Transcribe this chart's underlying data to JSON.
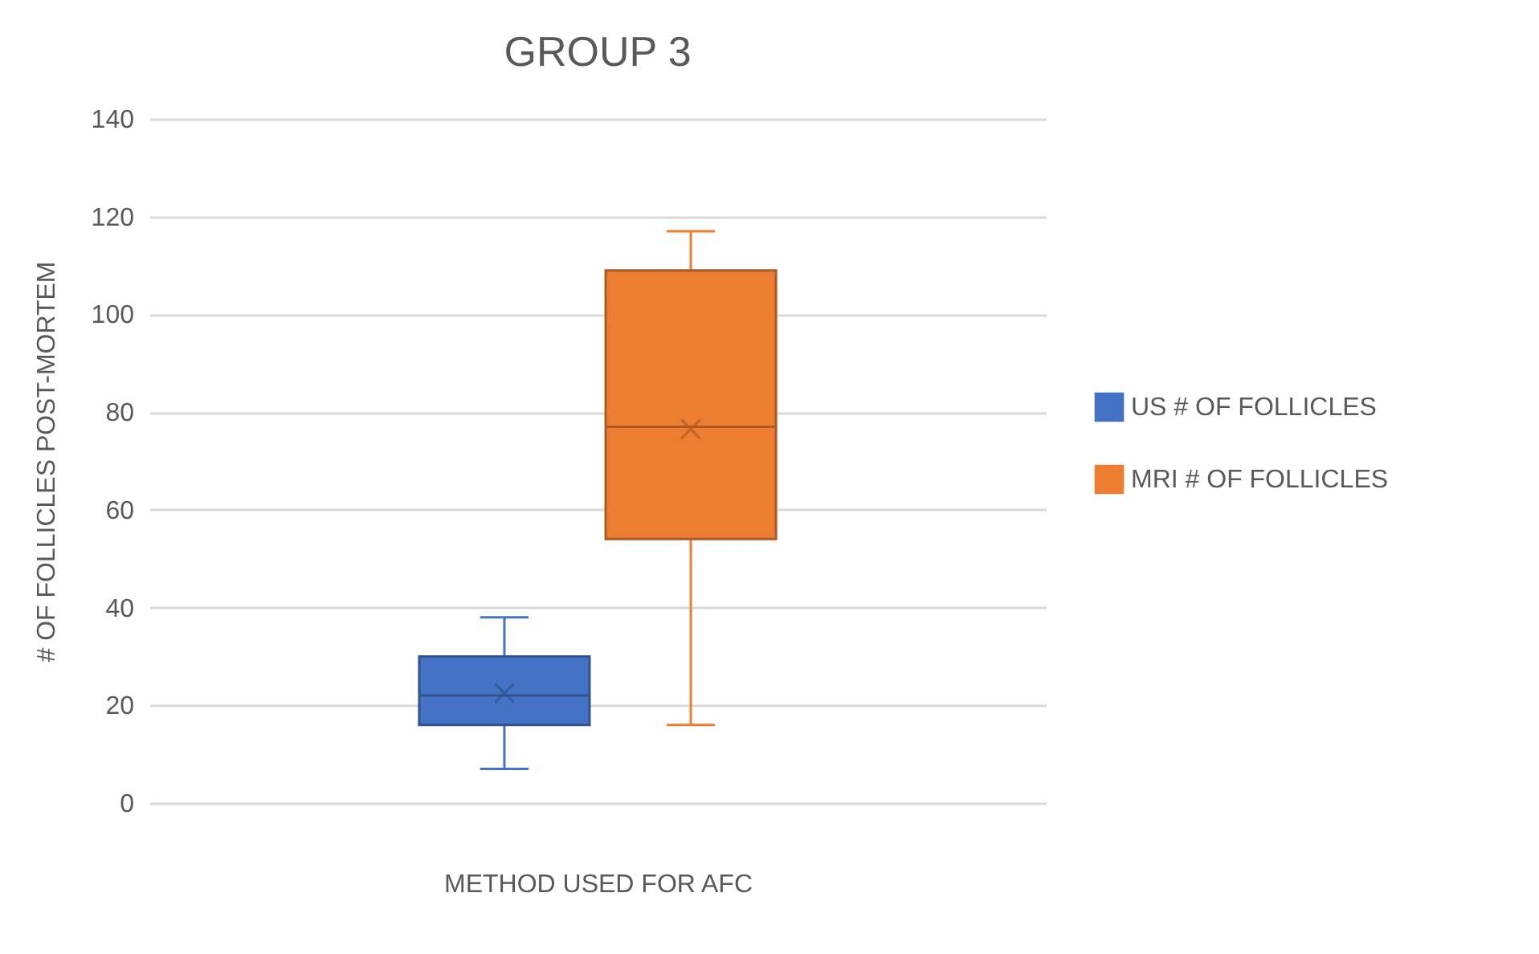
{
  "chart_data": {
    "type": "box",
    "title": "GROUP 3",
    "xlabel": "METHOD USED FOR AFC",
    "ylabel": "# OF FOLLICLES POST-MORTEM",
    "categories": [
      null
    ],
    "series": [
      {
        "name": "US # OF FOLLICLES",
        "color": "#4472c4",
        "boxes": [
          {
            "low": 7,
            "q1": 16,
            "median": 22,
            "q3": 30,
            "high": 38,
            "mean": 22.5
          }
        ]
      },
      {
        "name": "MRI # OF FOLLICLES",
        "color": "#ed7d31",
        "boxes": [
          {
            "low": 16,
            "q1": 54,
            "median": 77,
            "q3": 109,
            "high": 117,
            "mean": 76.5
          }
        ]
      }
    ],
    "ylim": [
      0,
      140
    ],
    "yticks": [
      0,
      20,
      40,
      60,
      80,
      100,
      120,
      140
    ],
    "grid": "y",
    "legend": "right",
    "marker": "cross"
  }
}
